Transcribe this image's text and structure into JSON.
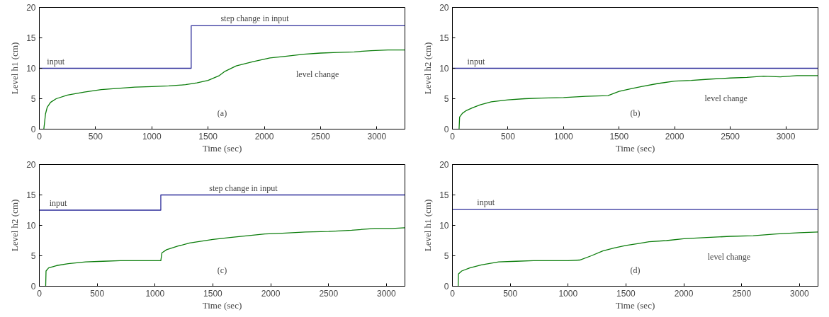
{
  "chart_data": [
    {
      "type": "line",
      "xlabel": "Time (sec)",
      "ylabel": "Level h1 (cm)",
      "xlim": [
        0,
        3250
      ],
      "ylim": [
        0,
        20
      ],
      "xticks": [
        0,
        500,
        1000,
        1500,
        2000,
        2500,
        3000
      ],
      "yticks": [
        0,
        5,
        10,
        15,
        20
      ],
      "grid": false,
      "series": [
        {
          "color": "#2e2e9a",
          "x": [
            0,
            1350,
            1350,
            3250
          ],
          "values": [
            10,
            10,
            17,
            17
          ]
        },
        {
          "color": "#0b7d0b",
          "x": [
            40,
            55,
            70,
            100,
            150,
            250,
            400,
            550,
            700,
            850,
            1000,
            1150,
            1300,
            1400,
            1500,
            1600,
            1650,
            1750,
            1900,
            2050,
            2200,
            2350,
            2500,
            2650,
            2800,
            2950,
            3100,
            3250
          ],
          "values": [
            0,
            2.5,
            3.6,
            4.4,
            5.0,
            5.6,
            6.1,
            6.5,
            6.7,
            6.9,
            7.0,
            7.1,
            7.3,
            7.6,
            8.0,
            8.8,
            9.5,
            10.4,
            11.1,
            11.7,
            12.0,
            12.3,
            12.5,
            12.6,
            12.7,
            12.9,
            13.0,
            13.0
          ]
        }
      ],
      "annotations": [
        {
          "text": "input",
          "x": 146,
          "y": 10
        },
        {
          "text": "step change in input",
          "x": 1915,
          "y": 17
        },
        {
          "text": "level change",
          "x": 2473,
          "y": 12.4
        },
        "(a)"
      ]
    },
    {
      "type": "line",
      "xlabel": "Time (sec)",
      "ylabel": "Level h2 (cm)",
      "xlim": [
        0,
        3290
      ],
      "ylim": [
        0,
        20
      ],
      "xticks": [
        0,
        500,
        1000,
        1500,
        2000,
        2500,
        3000
      ],
      "yticks": [
        0,
        5,
        10,
        15,
        20
      ],
      "grid": false,
      "series": [
        {
          "color": "#2e2e9a",
          "x": [
            0,
            3290
          ],
          "values": [
            10,
            10
          ]
        },
        {
          "color": "#0b7d0b",
          "x": [
            60,
            65,
            90,
            120,
            180,
            250,
            350,
            500,
            650,
            800,
            1000,
            1200,
            1400,
            1500,
            1600,
            1700,
            1850,
            2000,
            2150,
            2300,
            2500,
            2650,
            2800,
            2950,
            3100,
            3290
          ],
          "values": [
            0,
            2.0,
            2.6,
            3.0,
            3.5,
            4.0,
            4.5,
            4.8,
            5.0,
            5.1,
            5.2,
            5.4,
            5.5,
            6.2,
            6.6,
            7.0,
            7.5,
            7.9,
            8.0,
            8.2,
            8.4,
            8.5,
            8.7,
            8.6,
            8.8,
            8.8
          ]
        }
      ],
      "annotations": [
        {
          "text": "input",
          "x": 213,
          "y": 10
        },
        {
          "text": "level change",
          "x": 2462,
          "y": 8.4
        },
        "(b)"
      ]
    },
    {
      "type": "line",
      "xlabel": "Time (sec)",
      "ylabel": "Level h2 (cm)",
      "xlim": [
        0,
        3160
      ],
      "ylim": [
        0,
        20
      ],
      "xticks": [
        0,
        500,
        1000,
        1500,
        2000,
        2500,
        3000
      ],
      "yticks": [
        0,
        5,
        10,
        15,
        20
      ],
      "grid": false,
      "series": [
        {
          "color": "#2e2e9a",
          "x": [
            0,
            1050,
            1050,
            3160
          ],
          "values": [
            12.5,
            12.5,
            15,
            15
          ]
        },
        {
          "color": "#0b7d0b",
          "x": [
            55,
            58,
            80,
            150,
            250,
            400,
            550,
            700,
            850,
            1000,
            1050,
            1060,
            1100,
            1200,
            1300,
            1400,
            1500,
            1650,
            1800,
            1950,
            2100,
            2300,
            2500,
            2700,
            2900,
            3050,
            3160
          ],
          "values": [
            0,
            2.5,
            3.0,
            3.4,
            3.7,
            4.0,
            4.1,
            4.2,
            4.2,
            4.2,
            4.2,
            5.5,
            6.0,
            6.6,
            7.1,
            7.4,
            7.7,
            8.0,
            8.3,
            8.6,
            8.7,
            8.9,
            9.0,
            9.2,
            9.5,
            9.5,
            9.6
          ]
        }
      ],
      "annotations": [
        {
          "text": "input",
          "x": 163,
          "y": 12.5
        },
        {
          "text": "step change in input",
          "x": 1763,
          "y": 15
        },
        "(c)"
      ]
    },
    {
      "type": "line",
      "xlabel": "Time (sec)",
      "ylabel": "Level h1 (cm)",
      "xlim": [
        0,
        3160
      ],
      "ylim": [
        0,
        20
      ],
      "xticks": [
        0,
        500,
        1000,
        1500,
        2000,
        2500,
        3000
      ],
      "yticks": [
        0,
        5,
        10,
        15,
        20
      ],
      "grid": false,
      "series": [
        {
          "color": "#2e2e9a",
          "x": [
            0,
            3160
          ],
          "values": [
            12.6,
            12.6
          ]
        },
        {
          "color": "#0b7d0b",
          "x": [
            50,
            52,
            80,
            150,
            250,
            400,
            550,
            700,
            850,
            1000,
            1100,
            1200,
            1300,
            1400,
            1500,
            1600,
            1700,
            1850,
            2000,
            2200,
            2400,
            2600,
            2800,
            3000,
            3160
          ],
          "values": [
            0,
            2.0,
            2.5,
            3.0,
            3.5,
            4.0,
            4.1,
            4.2,
            4.2,
            4.2,
            4.3,
            5.0,
            5.8,
            6.3,
            6.7,
            7.0,
            7.3,
            7.5,
            7.8,
            8.0,
            8.2,
            8.3,
            8.6,
            8.8,
            8.9
          ]
        }
      ],
      "annotations": [
        {
          "text": "input",
          "x": 289,
          "y": 12.6
        },
        {
          "text": "level change",
          "x": 2391,
          "y": 8.2
        },
        "(d)"
      ]
    }
  ]
}
